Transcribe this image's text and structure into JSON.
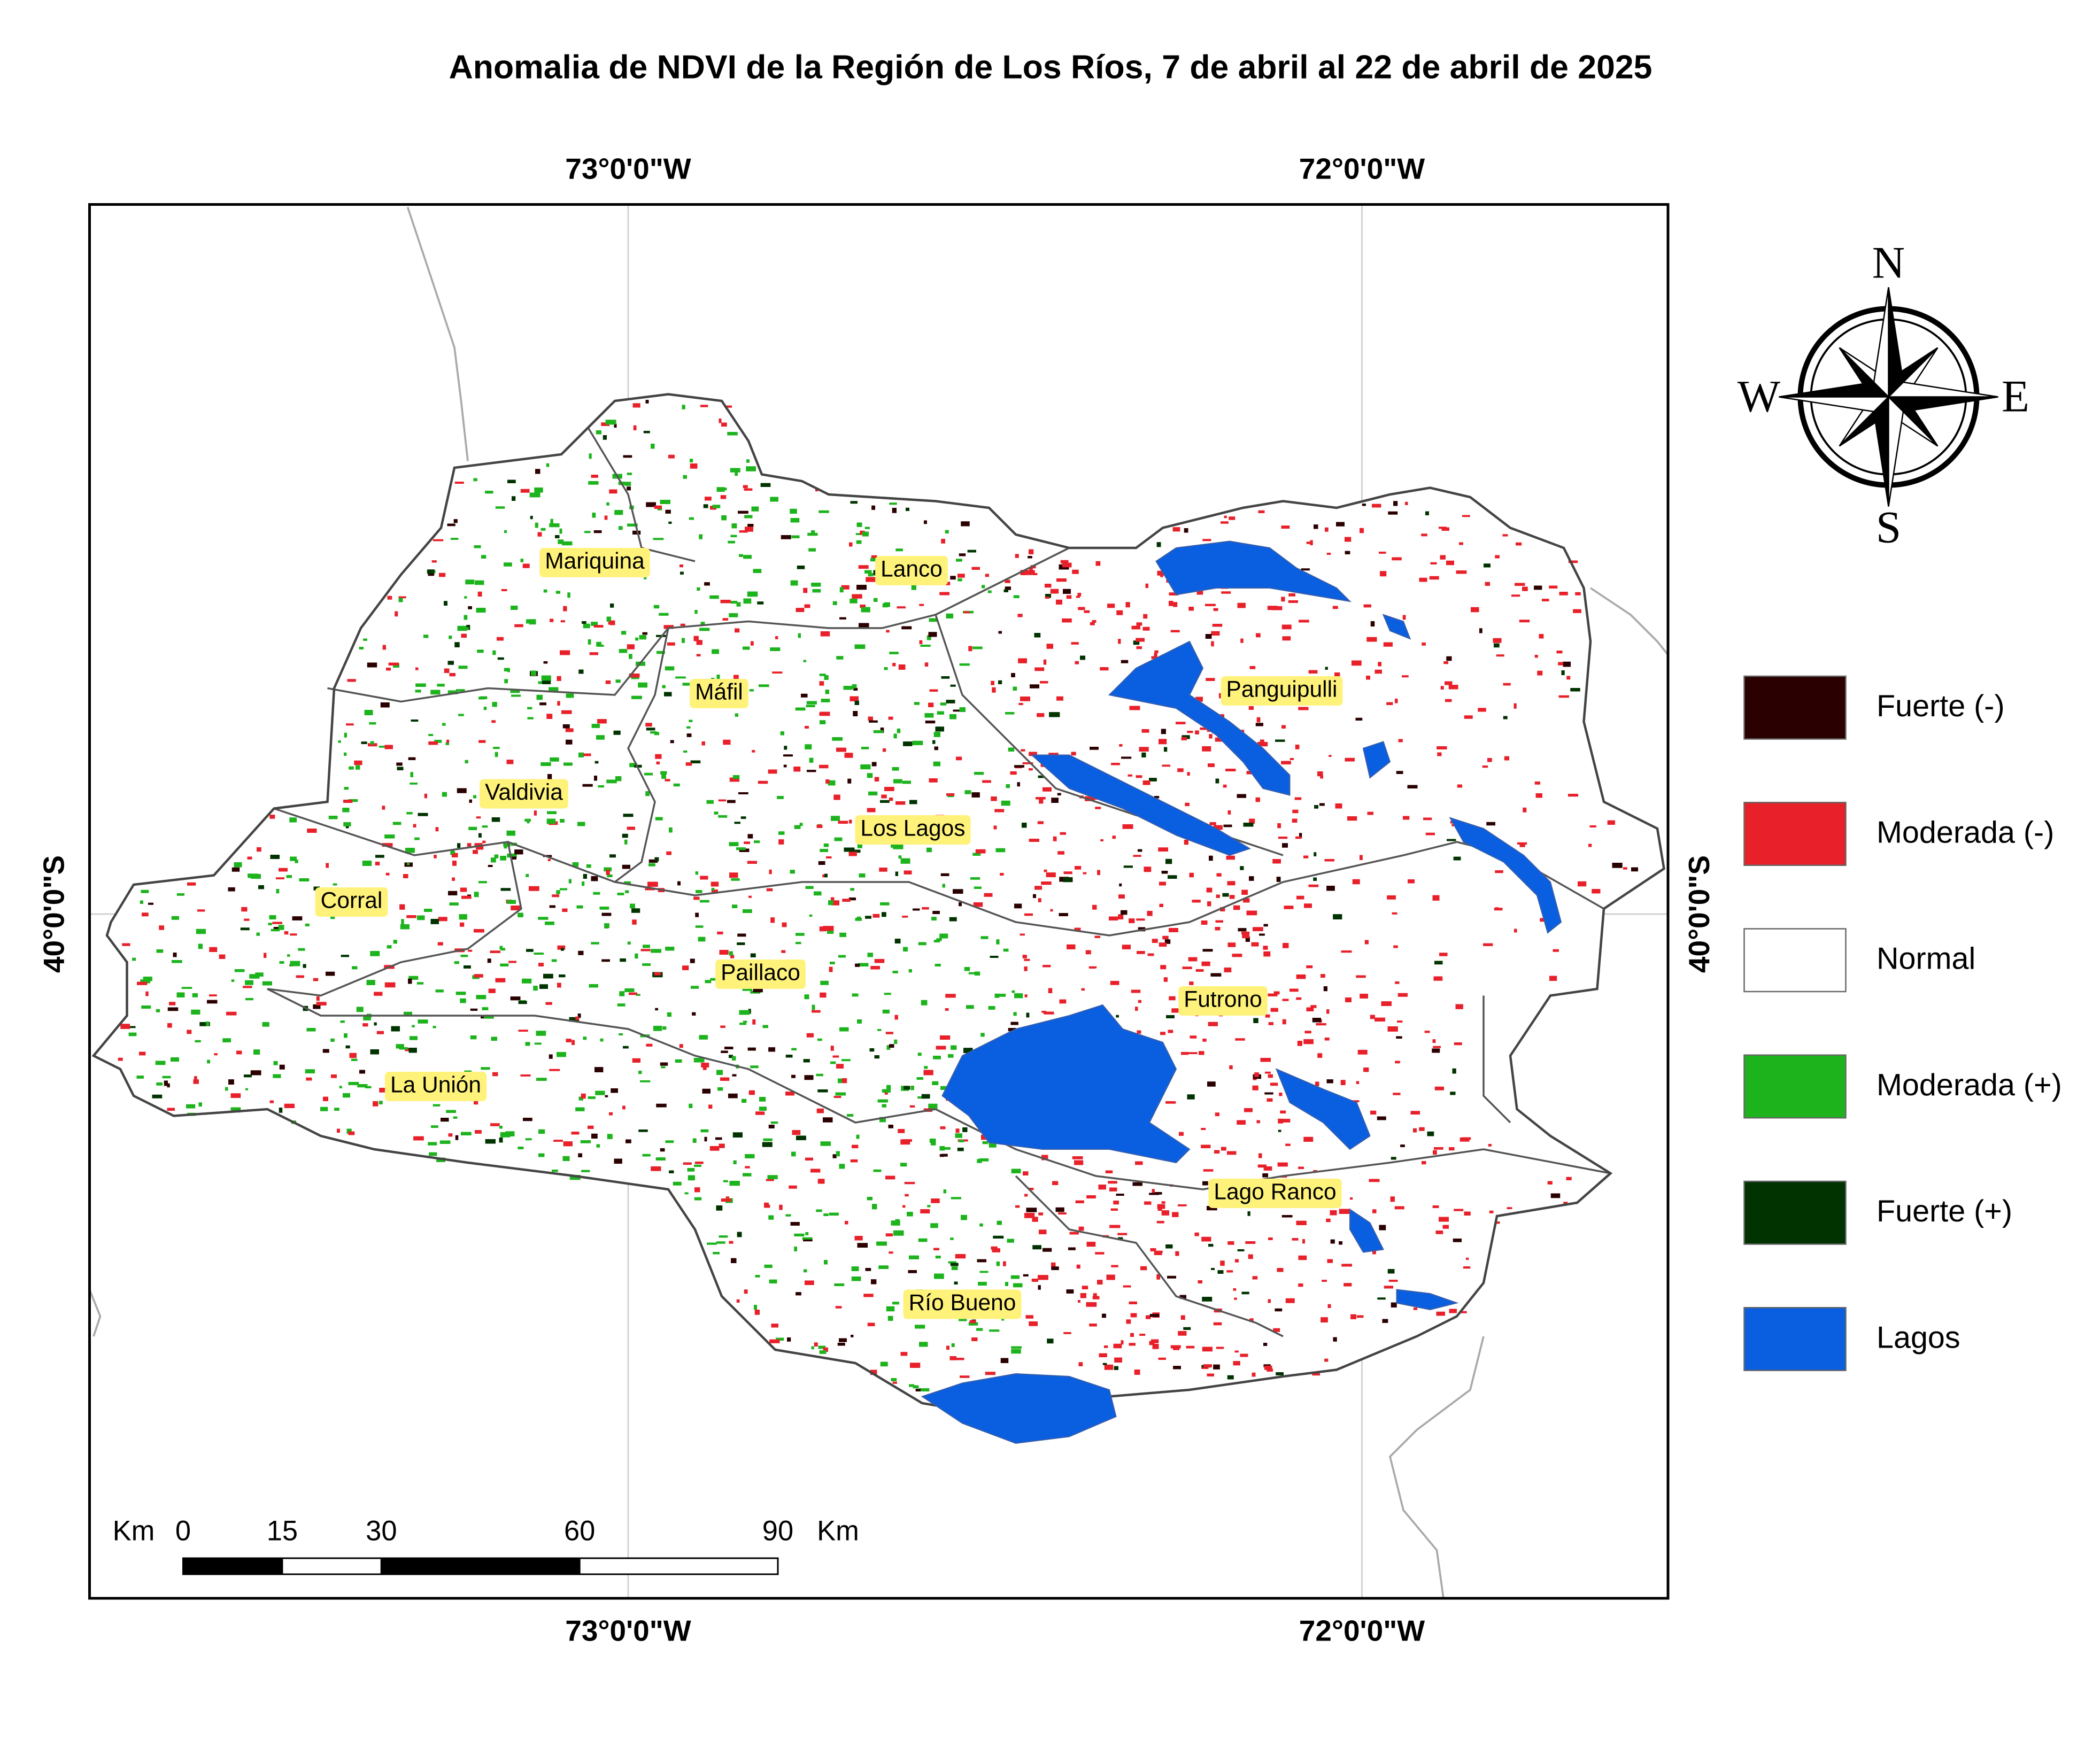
{
  "header": {
    "title": "Anomalia de NDVI de la Región de Los Ríos, 7 de abril al 22 de abril de 2025"
  },
  "graticule": {
    "top": [
      "73°0'0\"W",
      "72°0'0\"W"
    ],
    "bottom": [
      "73°0'0\"W",
      "72°0'0\"W"
    ],
    "left": "40°0'0\"S",
    "right": "40°0'0\"S"
  },
  "compass": {
    "n": "N",
    "s": "S",
    "e": "E",
    "w": "W"
  },
  "legend": [
    {
      "label": "Fuerte (-)",
      "color": "#2a0000"
    },
    {
      "label": "Moderada (-)",
      "color": "#e8202a"
    },
    {
      "label": "Normal",
      "color": "#ffffff"
    },
    {
      "label": "Moderada (+)",
      "color": "#1db31d"
    },
    {
      "label": "Fuerte (+)",
      "color": "#003300"
    },
    {
      "label": "Lagos",
      "color": "#0a5fe0"
    }
  ],
  "places": [
    "Mariquina",
    "Lanco",
    "Máfil",
    "Panguipulli",
    "Valdivia",
    "Los Lagos",
    "Corral",
    "Paillaco",
    "Futrono",
    "La Unión",
    "Lago Ranco",
    "Río Bueno"
  ],
  "scale_bar": {
    "unit": "Km",
    "ticks": [
      0,
      15,
      30,
      60,
      90
    ],
    "end_unit": "Km"
  }
}
